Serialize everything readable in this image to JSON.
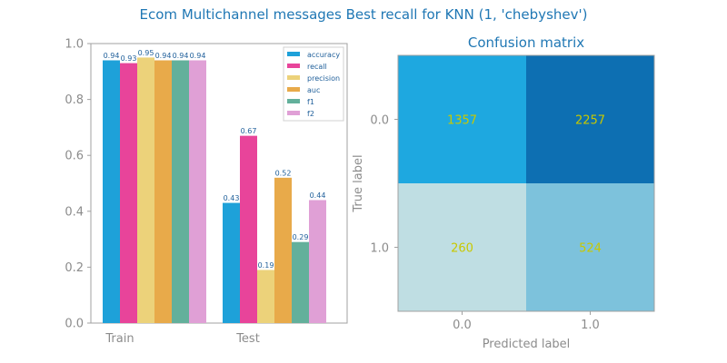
{
  "figure": {
    "title": "Ecom Multichannel messages Best recall for KNN (1, 'chebyshev')"
  },
  "chart_data": [
    {
      "type": "bar",
      "title": "",
      "xlabel": "",
      "ylabel": "",
      "ylim": [
        0,
        1
      ],
      "yticks": [
        "0.0",
        "0.2",
        "0.4",
        "0.6",
        "0.8",
        "1.0"
      ],
      "categories": [
        "Train",
        "Test"
      ],
      "legend_position": "top-right",
      "series": [
        {
          "name": "accuracy",
          "color": "#1ea1d9",
          "values": [
            0.94,
            0.43
          ],
          "labels": [
            "0.94",
            "0.43"
          ]
        },
        {
          "name": "recall",
          "color": "#e8449a",
          "values": [
            0.93,
            0.67
          ],
          "labels": [
            "0.93",
            "0.67"
          ]
        },
        {
          "name": "precision",
          "color": "#ecd27a",
          "values": [
            0.95,
            0.19
          ],
          "labels": [
            "0.95",
            "0.19"
          ]
        },
        {
          "name": "auc",
          "color": "#e8aa4a",
          "values": [
            0.94,
            0.52
          ],
          "labels": [
            "0.94",
            "0.52"
          ]
        },
        {
          "name": "f1",
          "color": "#63b09b",
          "values": [
            0.94,
            0.29
          ],
          "labels": [
            "0.94",
            "0.29"
          ]
        },
        {
          "name": "f2",
          "color": "#e0a0d6",
          "values": [
            0.94,
            0.44
          ],
          "labels": [
            "0.94",
            "0.44"
          ]
        }
      ]
    },
    {
      "type": "heatmap",
      "title": "Confusion matrix",
      "xlabel": "Predicted label",
      "ylabel": "True label",
      "x_categories": [
        "0.0",
        "1.0"
      ],
      "y_categories": [
        "0.0",
        "1.0"
      ],
      "values": [
        [
          1357,
          2257
        ],
        [
          260,
          524
        ]
      ],
      "cell_colors": [
        [
          "#1ea8e0",
          "#0d6fb2"
        ],
        [
          "#bfdee3",
          "#7dc2dc"
        ]
      ],
      "value_color": "#c8c800"
    }
  ]
}
